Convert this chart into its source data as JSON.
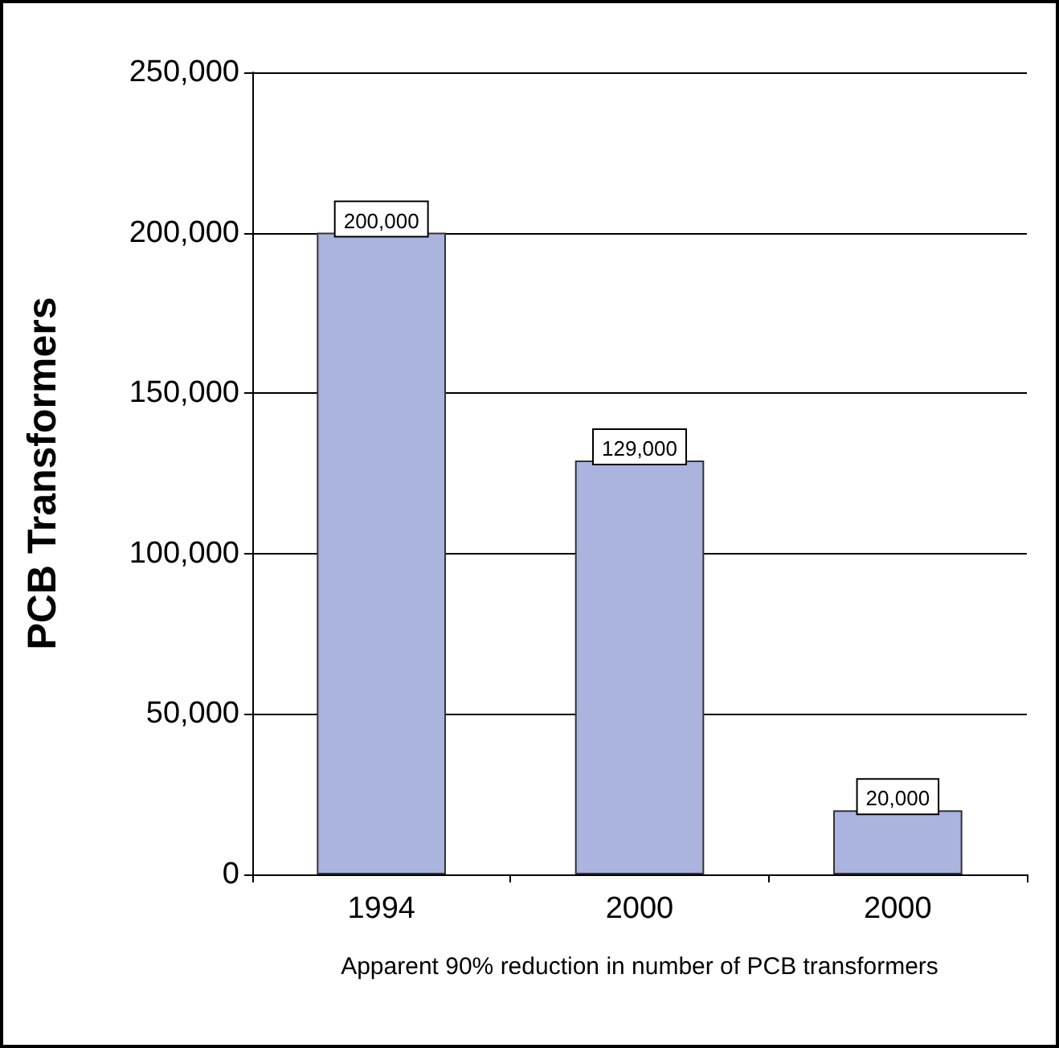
{
  "chart_data": {
    "type": "bar",
    "xlabel": "Apparent 90% reduction in number of PCB transformers",
    "ylabel": "PCB Transformers",
    "categories": [
      "1994",
      "2000",
      "2000"
    ],
    "values": [
      200000,
      129000,
      20000
    ],
    "color": "#aab4de",
    "value_labels": [
      "200,000",
      "129,000",
      "20,000"
    ],
    "ylim": [
      0,
      250000
    ],
    "yticks": [
      0,
      {
        "value": 50000,
        "label": "50,000"
      },
      {
        "value": 100000,
        "label": "100,000"
      },
      {
        "value": 150000,
        "label": "150,000"
      },
      {
        "value": 200000,
        "label": "200,000"
      },
      {
        "value": 250000,
        "label": "250,000"
      }
    ],
    "grid": "y"
  }
}
